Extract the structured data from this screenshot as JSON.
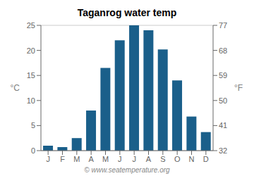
{
  "chart_data": {
    "type": "bar",
    "title": "Taganrog water temp",
    "categories": [
      "J",
      "F",
      "M",
      "A",
      "M",
      "J",
      "J",
      "A",
      "S",
      "O",
      "N",
      "D"
    ],
    "values": [
      1.0,
      0.7,
      2.5,
      8.0,
      16.5,
      22.0,
      25.0,
      24.0,
      20.2,
      14.0,
      6.8,
      3.7
    ],
    "ylabel": "°C",
    "y2label": "°F",
    "ylim": [
      0,
      25
    ],
    "yticks": [
      0,
      5,
      10,
      15,
      20,
      25
    ],
    "y2lim": [
      32,
      77
    ],
    "y2ticks": [
      32,
      41,
      50,
      59,
      68,
      77
    ],
    "color": "#1a5f8a",
    "grid": true,
    "annotations": [
      "© www.seatemperature.org"
    ]
  }
}
